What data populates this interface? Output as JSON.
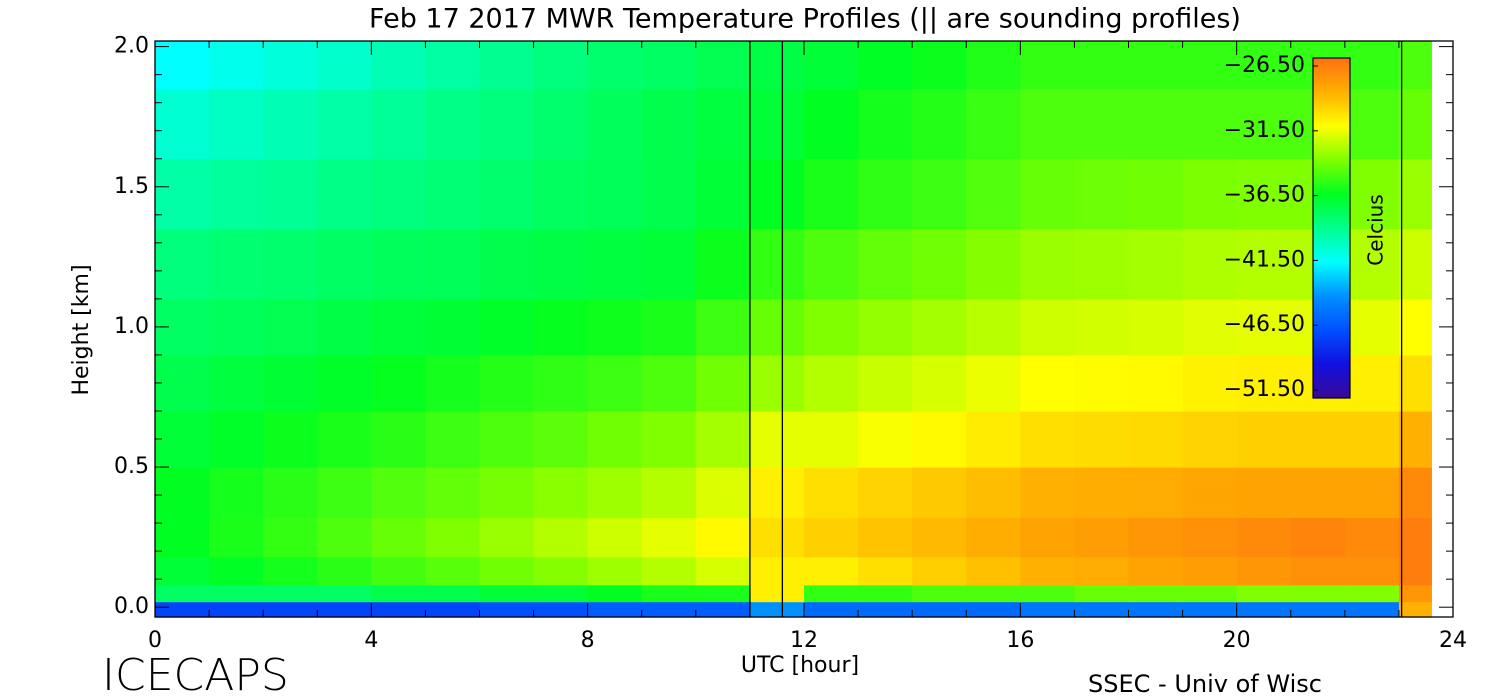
{
  "chart_data": {
    "type": "heatmap",
    "title": "Feb 17 2017 MWR Temperature Profiles (|| are sounding profiles)",
    "xlabel": "UTC [hour]",
    "ylabel": "Height [km]",
    "colorbar_label": "Celcius",
    "footer_left": "ICECAPS",
    "footer_right": "SSEC - Univ of Wisc",
    "xlim": [
      0,
      24
    ],
    "xticks": [
      0,
      4,
      8,
      12,
      16,
      20,
      24
    ],
    "xminorticks": [
      1,
      2,
      3,
      5,
      6,
      7,
      9,
      10,
      11,
      13,
      14,
      15,
      17,
      18,
      19,
      21,
      22,
      23
    ],
    "ylim": [
      -0.035,
      2.02
    ],
    "yticks": [
      {
        "value": 0,
        "label": "0.0"
      },
      0.5,
      {
        "value": 1,
        "label": "1.0"
      },
      1.5,
      {
        "value": 2,
        "label": "2.0"
      }
    ],
    "yminorticks": [
      0.1,
      0.2,
      0.3,
      0.4,
      0.6,
      0.7,
      0.8,
      0.9,
      1.1,
      1.2,
      1.3,
      1.4,
      1.6,
      1.7,
      1.8,
      1.9
    ],
    "zlim": [
      -51.5,
      -26.5
    ],
    "zticks": [
      {
        "value": -26.5,
        "label": "−26.50"
      },
      {
        "value": -31.5,
        "label": "−31.50"
      },
      {
        "value": -36.5,
        "label": "−36.50"
      },
      {
        "value": -41.5,
        "label": "−41.50"
      },
      {
        "value": -46.5,
        "label": "−46.50"
      },
      {
        "value": -51.5,
        "label": "−51.50"
      }
    ],
    "colors": [
      "#3a0a9a",
      "#1010e0",
      "#0050ff",
      "#0090ff",
      "#00ffff",
      "#00ff90",
      "#00ff20",
      "#80ff00",
      "#ffff00",
      "#ffb000",
      "#ff7010"
    ],
    "sounding_lines": [
      11.0,
      11.6,
      23.05
    ],
    "xbins": [
      0,
      1,
      2,
      3,
      4,
      5,
      6,
      7,
      8,
      9,
      10,
      11,
      12,
      13,
      14,
      15,
      16,
      17,
      18,
      19,
      20,
      21,
      22,
      23,
      23.6
    ],
    "ybins": [
      -0.035,
      0.02,
      0.08,
      0.18,
      0.32,
      0.5,
      0.7,
      0.9,
      1.1,
      1.35,
      1.6,
      1.85,
      2.02
    ],
    "values": [
      [
        -47,
        -47,
        -47,
        -47,
        -47,
        -47,
        -46.5,
        -46.5,
        -46,
        -46,
        -46,
        -44,
        -45.5,
        -45.5,
        -45.5,
        -45.5,
        -45,
        -45,
        -45,
        -45,
        -45,
        -45,
        -45,
        -29
      ],
      [
        -38,
        -38,
        -38,
        -38,
        -37.5,
        -37.5,
        -37,
        -37,
        -36.5,
        -36,
        -36,
        -31,
        -35.5,
        -35.5,
        -35,
        -35,
        -35,
        -34.5,
        -34.5,
        -34.5,
        -34,
        -34,
        -34,
        -28
      ],
      [
        -37,
        -36.6,
        -36.1,
        -35.7,
        -35.2,
        -34.8,
        -34.3,
        -33.9,
        -33.4,
        -33,
        -32.3,
        -31,
        -31,
        -30.5,
        -30,
        -29.5,
        -29,
        -28.8,
        -28.5,
        -28.3,
        -28,
        -27.8,
        -27.8,
        -27
      ],
      [
        -36.5,
        -36,
        -35.5,
        -35,
        -34.5,
        -34,
        -33.5,
        -33,
        -32.5,
        -32,
        -31.3,
        -30.5,
        -30,
        -29.6,
        -29.3,
        -28.9,
        -28.5,
        -28.3,
        -28,
        -27.8,
        -27.5,
        -27.3,
        -27.5,
        -27
      ],
      [
        -36.5,
        -36.1,
        -35.7,
        -35.3,
        -34.9,
        -34.6,
        -34.2,
        -33.8,
        -33.4,
        -33,
        -32.2,
        -31,
        -30.5,
        -30.1,
        -29.8,
        -29.4,
        -29,
        -28.9,
        -28.8,
        -28.6,
        -28.5,
        -28.5,
        -28.5,
        -27.5
      ],
      [
        -37,
        -36.7,
        -36.3,
        -36,
        -35.7,
        -35.3,
        -35,
        -34.7,
        -34.3,
        -34,
        -33.3,
        -32,
        -32,
        -31.6,
        -31.3,
        -30.9,
        -30.5,
        -30.4,
        -30.3,
        -30.1,
        -30,
        -30,
        -30,
        -29
      ],
      [
        -37.5,
        -37.2,
        -36.9,
        -36.7,
        -36.4,
        -36.1,
        -35.8,
        -35.6,
        -35.3,
        -35,
        -34.3,
        -33.5,
        -33,
        -32.6,
        -32.3,
        -31.9,
        -31.5,
        -31.4,
        -31.3,
        -31.1,
        -31,
        -31,
        -31,
        -30.5
      ],
      [
        -38,
        -37.8,
        -37.6,
        -37.3,
        -37.1,
        -36.9,
        -36.7,
        -36.4,
        -36.2,
        -36,
        -35.3,
        -34.5,
        -34,
        -33.6,
        -33.3,
        -32.9,
        -32.5,
        -32.4,
        -32.3,
        -32.1,
        -32,
        -32,
        -32,
        -31.5
      ],
      [
        -38.5,
        -38.3,
        -38.2,
        -38,
        -37.8,
        -37.7,
        -37.5,
        -37.3,
        -37.2,
        -37,
        -36.3,
        -35.5,
        -35,
        -34.6,
        -34.3,
        -33.9,
        -33.5,
        -33.4,
        -33.3,
        -33.1,
        -33,
        -33,
        -33,
        -32.5
      ],
      [
        -39.5,
        -39.3,
        -39.1,
        -38.8,
        -38.6,
        -38.4,
        -38.2,
        -37.9,
        -37.7,
        -37.5,
        -37,
        -36.5,
        -36,
        -35.6,
        -35.3,
        -34.9,
        -34.5,
        -34.4,
        -34.3,
        -34.1,
        -34,
        -34,
        -34,
        -33.5
      ],
      [
        -40.5,
        -40.2,
        -39.8,
        -39.5,
        -39.2,
        -38.8,
        -38.5,
        -38.2,
        -37.8,
        -37.5,
        -37.2,
        -37,
        -36.5,
        -36.1,
        -35.8,
        -35.4,
        -35,
        -35,
        -35,
        -35,
        -35,
        -35,
        -35,
        -34.5
      ],
      [
        -41.5,
        -41.1,
        -40.7,
        -40.3,
        -39.8,
        -39.4,
        -39,
        -38.6,
        -38.2,
        -38,
        -37.6,
        -37.3,
        -37,
        -36.6,
        -36.3,
        -35.9,
        -35.5,
        -35.5,
        -35.5,
        -35.5,
        -35.5,
        -35.5,
        -35.5,
        -35
      ]
    ]
  }
}
